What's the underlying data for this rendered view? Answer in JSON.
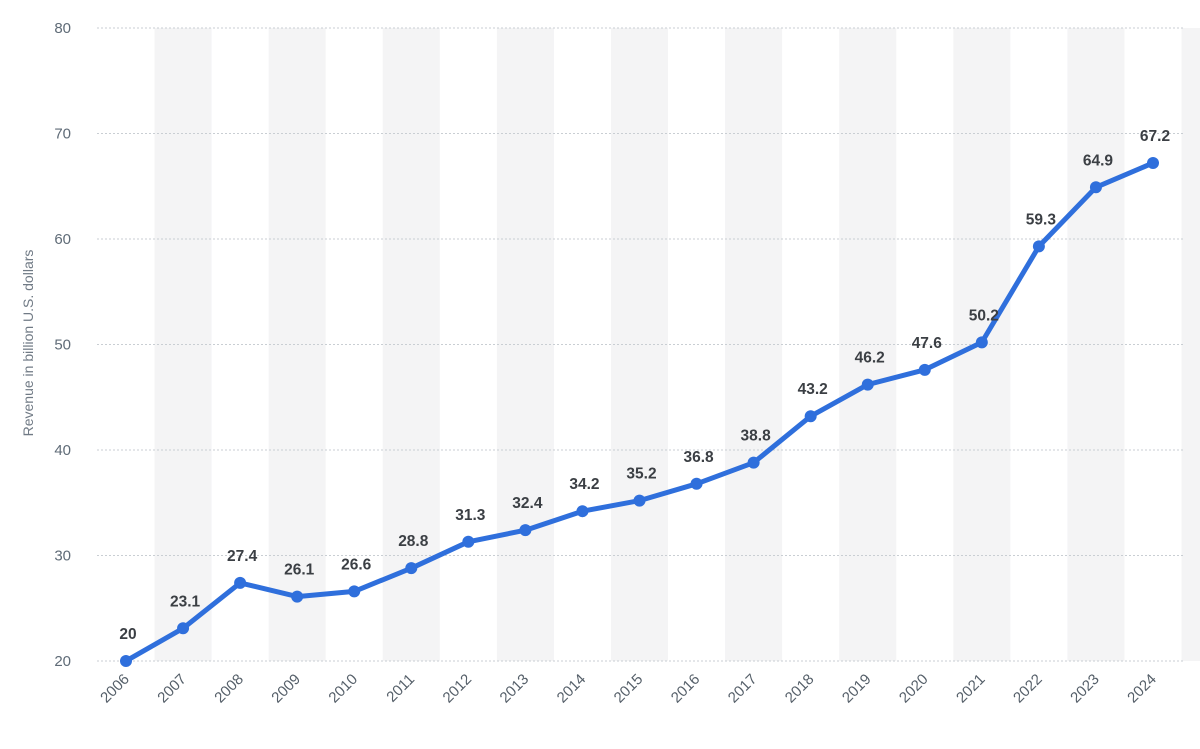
{
  "chart_data": {
    "type": "line",
    "title": "",
    "xlabel": "",
    "ylabel": "Revenue in billion U.S. dollars",
    "x": [
      "2006",
      "2007",
      "2008",
      "2009",
      "2010",
      "2011",
      "2012",
      "2013",
      "2014",
      "2015",
      "2016",
      "2017",
      "2018",
      "2019",
      "2020",
      "2021",
      "2022",
      "2023",
      "2024"
    ],
    "series": [
      {
        "values": [
          20,
          23.1,
          27.4,
          26.1,
          26.6,
          28.8,
          31.3,
          32.4,
          34.2,
          35.2,
          36.8,
          38.8,
          43.2,
          46.2,
          47.6,
          50.2,
          59.3,
          64.9,
          67.2
        ],
        "labels": [
          "20",
          "23.1",
          "27.4",
          "26.1",
          "26.6",
          "28.8",
          "31.3",
          "32.4",
          "34.2",
          "35.2",
          "36.8",
          "38.8",
          "43.2",
          "46.2",
          "47.6",
          "50.2",
          "59.3",
          "64.9",
          "67.2"
        ]
      }
    ],
    "ylim": [
      20,
      80
    ],
    "yticks": [
      "20",
      "30",
      "40",
      "50",
      "60",
      "70",
      "80"
    ],
    "grid": true,
    "alternating_column_bands": true,
    "legend": "none",
    "colors": {
      "line": "#2f6fdc",
      "gridline": "#c9ced3",
      "band": "#f4f4f5"
    }
  }
}
